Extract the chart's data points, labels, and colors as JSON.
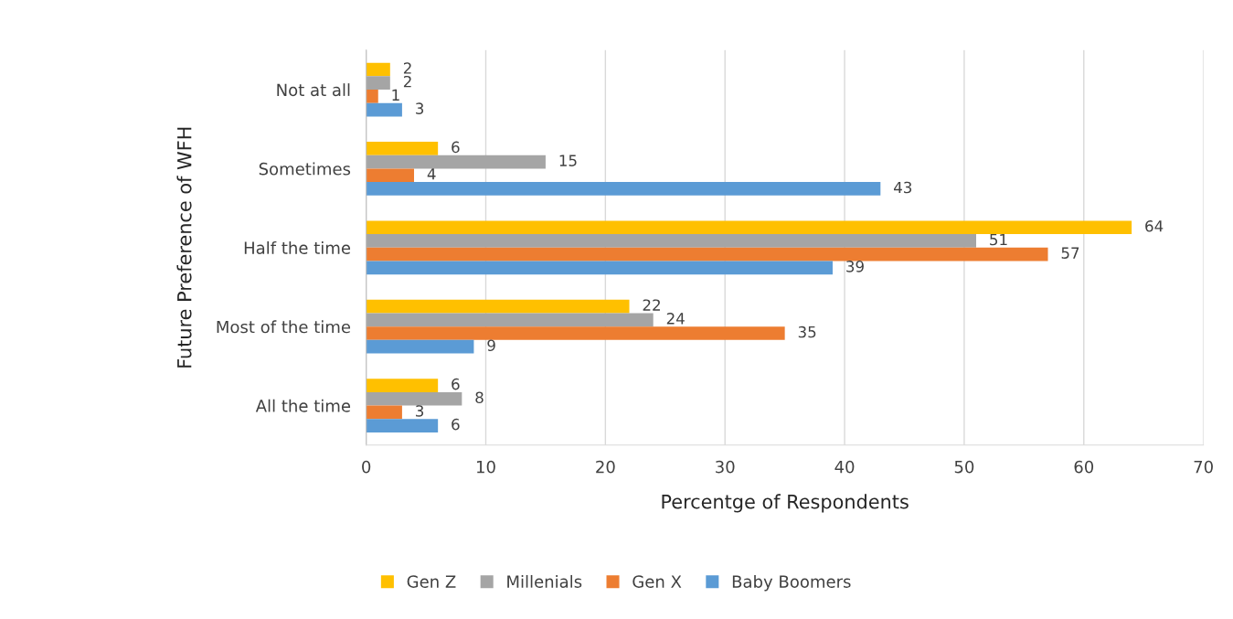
{
  "chart_data": {
    "type": "bar",
    "orientation": "horizontal",
    "xlabel": "Percentge of Respondents",
    "ylabel": "Future Preference of WFH",
    "categories": [
      "Not at all",
      "Sometimes",
      "Half the time",
      "Most of the time",
      "All the time"
    ],
    "series": [
      {
        "name": "Gen Z",
        "color": "#ffc000",
        "values": [
          2,
          6,
          64,
          22,
          6
        ]
      },
      {
        "name": "Millenials",
        "color": "#a5a5a5",
        "values": [
          2,
          15,
          51,
          24,
          8
        ]
      },
      {
        "name": "Gen X",
        "color": "#ed7d31",
        "values": [
          1,
          4,
          57,
          35,
          3
        ]
      },
      {
        "name": "Baby Boomers",
        "color": "#5b9bd5",
        "values": [
          3,
          43,
          39,
          9,
          6
        ]
      }
    ],
    "xlim": [
      0,
      70
    ],
    "xticks": [
      0,
      10,
      20,
      30,
      40,
      50,
      60,
      70
    ],
    "grid": "x",
    "legend": "bottom",
    "data_labels": true
  }
}
